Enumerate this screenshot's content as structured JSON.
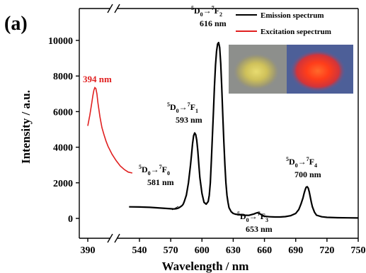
{
  "chart_data": {
    "type": "line",
    "panel_label": "(a)",
    "xlabel": "Wavelength / nm",
    "ylabel": "Intensity / a.u.",
    "x_ticks_left": [
      390
    ],
    "x_ticks_right": [
      540,
      570,
      600,
      630,
      660,
      690,
      720,
      750
    ],
    "x_tick_labels_left": [
      "390"
    ],
    "x_tick_labels_right": [
      "540",
      "570",
      "600",
      "630",
      "660",
      "690",
      "720",
      "750"
    ],
    "xlim_left": [
      380,
      415
    ],
    "xlim_right": [
      520,
      750
    ],
    "y_ticks": [
      0,
      2000,
      4000,
      6000,
      8000,
      10000
    ],
    "y_tick_labels": [
      "0",
      "2000",
      "4000",
      "6000",
      "8000",
      "10000"
    ],
    "ylim": [
      -600,
      11000
    ],
    "grid": false,
    "legend_position": "top-right",
    "series": [
      {
        "name": "Excitation sepectrum",
        "color": "#e02020",
        "x": [
          390,
          391,
          392,
          392.5,
          393,
          393.5,
          394,
          394.5,
          395,
          396,
          397,
          398,
          399,
          400,
          402,
          404,
          406,
          408,
          410,
          412
        ],
        "y": [
          5200,
          5800,
          6500,
          6900,
          7200,
          7350,
          7300,
          7000,
          6500,
          5700,
          5100,
          4700,
          4350,
          4050,
          3600,
          3250,
          2950,
          2750,
          2600,
          2550
        ]
      },
      {
        "name": "Emission spectrum",
        "color": "#000000",
        "x": [
          530,
          540,
          550,
          560,
          565,
          570,
          573,
          575,
          577,
          578,
          579,
          580,
          581,
          582,
          583,
          585,
          587,
          589,
          590,
          591,
          592,
          593,
          594,
          595,
          596,
          597,
          598,
          600,
          602,
          604,
          606,
          607,
          608,
          609,
          610,
          611,
          612,
          613,
          614,
          615,
          616,
          617,
          618,
          619,
          620,
          621,
          622,
          623,
          624,
          625,
          626,
          628,
          630,
          632,
          635,
          640,
          645,
          650,
          652,
          653,
          655,
          658,
          660,
          665,
          670,
          675,
          680,
          685,
          690,
          693,
          695,
          697,
          698,
          699,
          700,
          701,
          702,
          703,
          704,
          705,
          706,
          708,
          710,
          715,
          720,
          730,
          740,
          750
        ],
        "y": [
          650,
          640,
          620,
          580,
          560,
          540,
          530,
          540,
          570,
          600,
          640,
          680,
          720,
          800,
          950,
          1300,
          2000,
          3000,
          3600,
          4200,
          4650,
          4800,
          4700,
          4400,
          3800,
          3000,
          2300,
          1400,
          900,
          800,
          950,
          1300,
          2000,
          3200,
          4600,
          6000,
          7400,
          8600,
          9400,
          9800,
          9880,
          9600,
          8700,
          7400,
          5800,
          4300,
          3000,
          2000,
          1300,
          900,
          600,
          380,
          280,
          240,
          210,
          180,
          170,
          250,
          300,
          320,
          280,
          180,
          120,
          90,
          80,
          80,
          100,
          150,
          280,
          500,
          800,
          1150,
          1400,
          1600,
          1750,
          1780,
          1700,
          1500,
          1200,
          900,
          650,
          350,
          180,
          90,
          60,
          40,
          30,
          25
        ]
      }
    ],
    "annotations": [
      {
        "pre": "5",
        "d": "D",
        "d_sub": "0",
        "f_sup": "7",
        "f": "F",
        "f_sub": "2",
        "nm": "616 nm"
      },
      {
        "pre": "5",
        "d": "D",
        "d_sub": "0",
        "f_sup": "7",
        "f": "F",
        "f_sub": "1",
        "nm": "593 nm"
      },
      {
        "pre": "5",
        "d": "D",
        "d_sub": "0",
        "f_sup": "7",
        "f": "F",
        "f_sub": "0",
        "nm": "581 nm"
      },
      {
        "pre": "5",
        "d": "D",
        "d_sub": "0",
        "f_sup": "7",
        "f": "F",
        "f_sub": "3",
        "nm": "653 nm"
      },
      {
        "pre": "5",
        "d": "D",
        "d_sub": "0",
        "f_sup": "7",
        "f": "F",
        "f_sub": "4",
        "nm": "700 nm"
      }
    ],
    "excitation_label": "394 nm",
    "arrow_glyph": "→",
    "inset_photos": [
      "yellow powder under daylight",
      "red-orange emitting powder under UV"
    ]
  }
}
